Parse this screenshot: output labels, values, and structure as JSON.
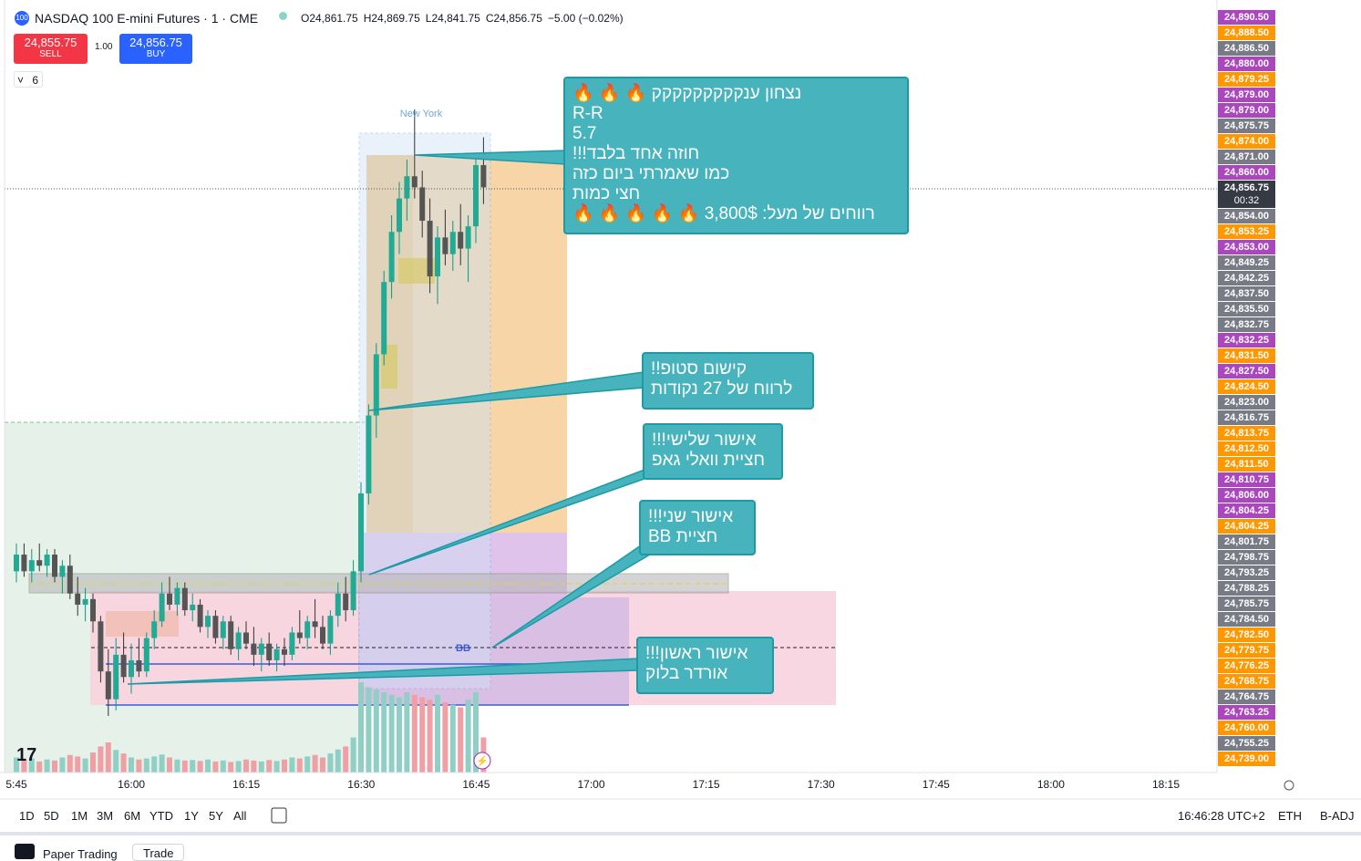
{
  "header": {
    "symbol_icon": "100",
    "title": "NASDAQ 100 E-mini Futures · 1 · CME",
    "ohlc": [
      "O24,861.75",
      "H24,869.75",
      "L24,841.75",
      "C24,856.75",
      "−5.00 (−0.02%)"
    ],
    "sell_price": "24,855.75",
    "sell_label": "SELL",
    "buy_price": "24,856.75",
    "buy_label": "BUY",
    "quantity": "1.00",
    "indicators_count": "6"
  },
  "chart": {
    "session_label": "New York",
    "level_label": "BB",
    "ylim": [
      24751.83,
      24890.68
    ],
    "volume_lim": [
      0,
      2000
    ],
    "time_labels": [
      "5:45",
      "16:00",
      "16:15",
      "16:30",
      "16:45",
      "17:00",
      "17:15",
      "17:30",
      "17:45",
      "18:00",
      "18:15"
    ],
    "candles": [
      [
        24788,
        24793,
        24786,
        24791
      ],
      [
        24791,
        24793,
        24787,
        24788
      ],
      [
        24788,
        24792,
        24786,
        24790
      ],
      [
        24790,
        24793,
        24788,
        24789
      ],
      [
        24789,
        24792,
        24787,
        24791
      ],
      [
        24791,
        24792,
        24786,
        24787
      ],
      [
        24787,
        24790,
        24784,
        24789
      ],
      [
        24789,
        24791,
        24783,
        24784
      ],
      [
        24784,
        24787,
        24780,
        24782
      ],
      [
        24782,
        24785,
        24779,
        24783
      ],
      [
        24783,
        24784,
        24777,
        24779
      ],
      [
        24779,
        24780,
        24768,
        24770
      ],
      [
        24770,
        24774,
        24762,
        24765
      ],
      [
        24765,
        24776,
        24763,
        24773
      ],
      [
        24773,
        24777,
        24768,
        24769
      ],
      [
        24769,
        24775,
        24766,
        24772
      ],
      [
        24772,
        24776,
        24769,
        24770
      ],
      [
        24770,
        24777,
        24769,
        24776
      ],
      [
        24776,
        24781,
        24774,
        24779
      ],
      [
        24779,
        24786,
        24778,
        24784
      ],
      [
        24784,
        24787,
        24781,
        24782
      ],
      [
        24782,
        24786,
        24780,
        24785
      ],
      [
        24785,
        24786,
        24780,
        24781
      ],
      [
        24781,
        24784,
        24779,
        24782
      ],
      [
        24782,
        24783,
        24777,
        24778
      ],
      [
        24778,
        24781,
        24776,
        24780
      ],
      [
        24780,
        24781,
        24775,
        24776
      ],
      [
        24776,
        24780,
        24774,
        24779
      ],
      [
        24779,
        24780,
        24773,
        24774
      ],
      [
        24774,
        24778,
        24772,
        24777
      ],
      [
        24777,
        24779,
        24774,
        24775
      ],
      [
        24775,
        24778,
        24771,
        24773
      ],
      [
        24773,
        24776,
        24770,
        24775
      ],
      [
        24775,
        24777,
        24771,
        24772
      ],
      [
        24772,
        24775,
        24770,
        24774
      ],
      [
        24774,
        24776,
        24771,
        24773
      ],
      [
        24773,
        24778,
        24772,
        24777
      ],
      [
        24777,
        24781,
        24775,
        24776
      ],
      [
        24776,
        24780,
        24774,
        24779
      ],
      [
        24779,
        24783,
        24776,
        24778
      ],
      [
        24778,
        24780,
        24774,
        24775
      ],
      [
        24775,
        24781,
        24773,
        24780
      ],
      [
        24780,
        24786,
        24778,
        24784
      ],
      [
        24784,
        24787,
        24779,
        24781
      ],
      [
        24781,
        24790,
        24780,
        24788
      ],
      [
        24788,
        24804,
        24786,
        24802
      ],
      [
        24802,
        24818,
        24800,
        24816
      ],
      [
        24816,
        24829,
        24812,
        24827
      ],
      [
        24827,
        24842,
        24825,
        24840
      ],
      [
        24840,
        24852,
        24837,
        24849
      ],
      [
        24849,
        24858,
        24845,
        24855
      ],
      [
        24855,
        24862,
        24851,
        24859
      ],
      [
        24859,
        24871,
        24855,
        24857
      ],
      [
        24857,
        24860,
        24848,
        24851
      ],
      [
        24851,
        24855,
        24838,
        24841
      ],
      [
        24841,
        24850,
        24836,
        24848
      ],
      [
        24848,
        24853,
        24843,
        24845
      ],
      [
        24845,
        24851,
        24842,
        24849
      ],
      [
        24849,
        24854,
        24843,
        24846
      ],
      [
        24846,
        24852,
        24840,
        24850
      ],
      [
        24850,
        24863,
        24847,
        24861
      ],
      [
        24861,
        24866,
        24854,
        24857
      ]
    ],
    "volumes": [
      300,
      250,
      280,
      220,
      260,
      240,
      300,
      350,
      320,
      280,
      400,
      520,
      600,
      450,
      380,
      300,
      260,
      280,
      320,
      360,
      300,
      260,
      240,
      250,
      230,
      260,
      220,
      240,
      210,
      230,
      260,
      240,
      220,
      250,
      230,
      260,
      300,
      280,
      320,
      350,
      300,
      380,
      460,
      520,
      700,
      1800,
      1700,
      1650,
      1600,
      1550,
      1500,
      1600,
      1550,
      1500,
      1450,
      1550,
      1400,
      1350,
      1300,
      1450,
      1600,
      700
    ],
    "price_labels": [
      {
        "text": "24,890.50",
        "kind": "purple"
      },
      {
        "text": "24,888.50",
        "kind": "orange"
      },
      {
        "text": "24,886.50",
        "kind": "gray"
      },
      {
        "text": "24,880.00",
        "kind": "purple"
      },
      {
        "text": "24,879.25",
        "kind": "orange"
      },
      {
        "text": "24,879.00",
        "kind": "purple"
      },
      {
        "text": "24,879.00",
        "kind": "purple"
      },
      {
        "text": "24,875.75",
        "kind": "gray"
      },
      {
        "text": "24,874.00",
        "kind": "orange"
      },
      {
        "text": "24,871.00",
        "kind": "gray"
      },
      {
        "text": "24,860.00",
        "kind": "purple"
      },
      {
        "text": "24,856.75",
        "kind": "current",
        "timer": "00:32"
      },
      {
        "text": "24,854.00",
        "kind": "gray"
      },
      {
        "text": "24,853.25",
        "kind": "orange"
      },
      {
        "text": "24,853.00",
        "kind": "purple"
      },
      {
        "text": "24,849.25",
        "kind": "gray"
      },
      {
        "text": "24,842.25",
        "kind": "gray"
      },
      {
        "text": "24,837.50",
        "kind": "gray"
      },
      {
        "text": "24,835.50",
        "kind": "gray"
      },
      {
        "text": "24,832.75",
        "kind": "gray"
      },
      {
        "text": "24,832.25",
        "kind": "purple"
      },
      {
        "text": "24,831.50",
        "kind": "orange"
      },
      {
        "text": "24,827.50",
        "kind": "purple"
      },
      {
        "text": "24,824.50",
        "kind": "orange"
      },
      {
        "text": "24,823.00",
        "kind": "gray"
      },
      {
        "text": "24,816.75",
        "kind": "gray"
      },
      {
        "text": "24,813.75",
        "kind": "orange"
      },
      {
        "text": "24,812.50",
        "kind": "orange"
      },
      {
        "text": "24,811.50",
        "kind": "orange"
      },
      {
        "text": "24,810.75",
        "kind": "purple"
      },
      {
        "text": "24,806.00",
        "kind": "purple"
      },
      {
        "text": "24,804.25",
        "kind": "purple"
      },
      {
        "text": "24,804.25",
        "kind": "orange"
      },
      {
        "text": "24,801.75",
        "kind": "gray"
      },
      {
        "text": "24,798.75",
        "kind": "gray"
      },
      {
        "text": "24,793.25",
        "kind": "gray"
      },
      {
        "text": "24,788.25",
        "kind": "gray"
      },
      {
        "text": "24,785.75",
        "kind": "gray"
      },
      {
        "text": "24,784.50",
        "kind": "gray"
      },
      {
        "text": "24,782.50",
        "kind": "orange"
      },
      {
        "text": "24,779.75",
        "kind": "orange"
      },
      {
        "text": "24,776.25",
        "kind": "orange"
      },
      {
        "text": "24,768.75",
        "kind": "orange"
      },
      {
        "text": "24,764.75",
        "kind": "gray"
      },
      {
        "text": "24,763.25",
        "kind": "purple"
      },
      {
        "text": "24,760.00",
        "kind": "orange"
      },
      {
        "text": "24,755.25",
        "kind": "gray"
      },
      {
        "text": "24,739.00",
        "kind": "orange"
      }
    ]
  },
  "callouts": [
    {
      "lines": [
        "נצחון ענקקקקקקקקק 🔥 🔥 🔥",
        "R-R",
        "5.7",
        "חוזה אחד בלבד!!!",
        "כמו שאמרתי ביום כזה",
        "חצי כמות",
        "רווחים של מעל: 3,800$ 🔥 🔥 🔥 🔥 🔥"
      ]
    },
    {
      "lines": [
        "קישום סטופ!!",
        "לרווח של 27 נקודות"
      ]
    },
    {
      "lines": [
        "אישור שלישי!!!",
        "חציית וואלי גאפ"
      ]
    },
    {
      "lines": [
        "אישור שני!!!",
        "חציית BB"
      ]
    },
    {
      "lines": [
        "אישור ראשון!!!",
        "אורדר בלוק"
      ]
    }
  ],
  "toolbar": {
    "ranges": [
      "1D",
      "5D",
      "1M",
      "3M",
      "6M",
      "YTD",
      "1Y",
      "5Y",
      "All"
    ],
    "clock": "16:46:28 UTC+2",
    "session": "ETH",
    "adjust": "B-ADJ"
  },
  "tabs": [
    "Paper Trading",
    "Trade"
  ]
}
